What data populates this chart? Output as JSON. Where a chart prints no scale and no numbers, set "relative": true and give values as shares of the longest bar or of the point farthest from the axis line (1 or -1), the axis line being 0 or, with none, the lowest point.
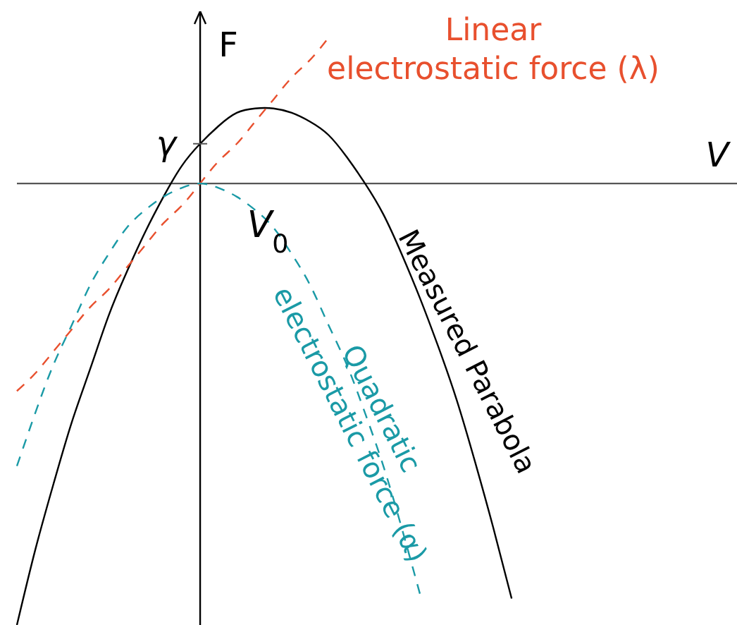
{
  "chart_data": {
    "type": "line",
    "relative": true,
    "xlabel": "V",
    "ylabel": "F",
    "marker": "none",
    "categories": [
      null,
      null,
      null,
      null,
      null,
      null,
      null,
      null,
      null,
      null,
      null,
      null,
      null,
      null,
      null,
      null,
      null,
      null,
      null,
      null,
      null,
      null,
      null,
      null,
      null,
      null,
      null,
      null,
      null,
      null,
      null,
      null,
      null,
      null,
      null,
      null,
      null,
      null,
      null,
      null
    ],
    "series": [
      {
        "name": "Measured Parabola",
        "color": "#000000",
        "line_style": "solid",
        "values": [
          -1,
          -0.83,
          -0.68,
          -0.54,
          -0.42,
          -0.3,
          -0.2,
          -0.11,
          -0.03,
          0.04,
          0.09,
          0.13,
          0.16,
          0.17,
          0.17,
          0.16,
          0.14,
          0.11,
          0.06,
          0,
          -0.07,
          -0.16,
          -0.26,
          -0.37,
          -0.49,
          -0.63,
          -0.78,
          -0.94,
          null,
          null,
          null,
          null,
          null,
          null,
          null,
          null,
          null,
          null,
          null,
          null
        ]
      },
      {
        "name": "Linear electrostatic force (λ)",
        "color": "#e8502e",
        "line_style": "dashed",
        "values": [
          -0.47,
          -0.43,
          -0.38,
          -0.33,
          -0.28,
          -0.24,
          -0.19,
          -0.14,
          -0.09,
          -0.05,
          0,
          0.05,
          0.09,
          0.14,
          0.19,
          0.24,
          0.28,
          0.33,
          null,
          null,
          null,
          null,
          null,
          null,
          null,
          null,
          null,
          null,
          null,
          null,
          null,
          null,
          null,
          null,
          null,
          null,
          null,
          null,
          null,
          null
        ]
      },
      {
        "name": "Quadratic electrostatic force (α)",
        "color": "#1a9aa6",
        "line_style": "dashed",
        "values": [
          -0.64,
          -0.52,
          -0.41,
          -0.32,
          -0.23,
          -0.16,
          -0.1,
          -0.06,
          -0.03,
          -0.01,
          0,
          -0.01,
          -0.03,
          -0.06,
          -0.1,
          -0.16,
          -0.23,
          -0.32,
          -0.41,
          -0.52,
          -0.64,
          -0.78,
          -0.93,
          null,
          null,
          null,
          null,
          null,
          null,
          null,
          null,
          null,
          null,
          null,
          null,
          null,
          null,
          null,
          null,
          null
        ]
      }
    ],
    "annotations": [
      "γ",
      "V$_{0}$"
    ]
  }
}
